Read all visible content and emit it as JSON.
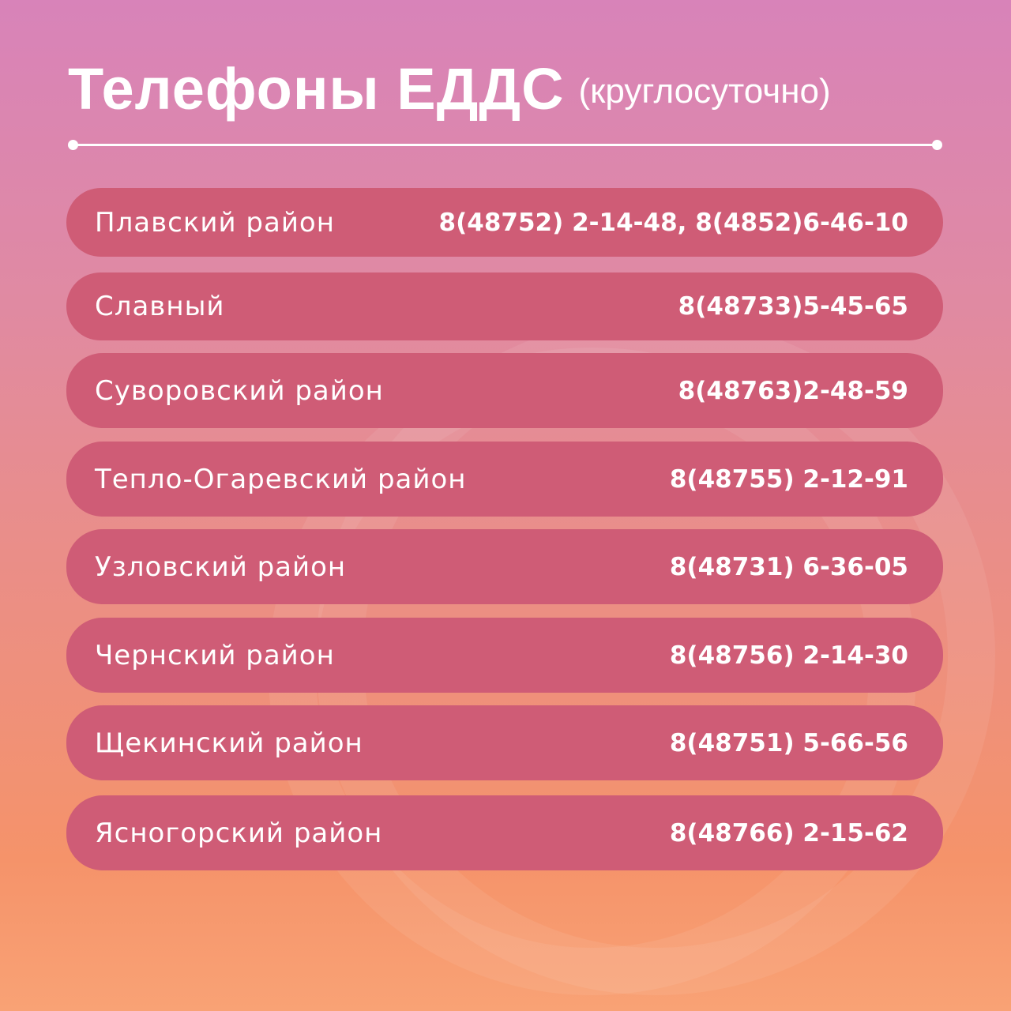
{
  "header": {
    "title": "Телефоны ЕДДС",
    "subtitle": "(круглосуточно)"
  },
  "colors": {
    "pill": "#cf5c76",
    "bg_top": "#d883b9",
    "bg_bottom": "#f9a275"
  },
  "rows": [
    {
      "name": "Плавский район",
      "phone": "8(48752) 2-14-48, 8(4852)6-46-10"
    },
    {
      "name": "Славный",
      "phone": "8(48733)5-45-65"
    },
    {
      "name": "Суворовский район",
      "phone": "8(48763)2-48-59"
    },
    {
      "name": "Тепло-Огаревский район",
      "phone": "8(48755) 2-12-91"
    },
    {
      "name": "Узловский район",
      "phone": "8(48731) 6-36-05"
    },
    {
      "name": "Чернский район",
      "phone": "8(48756) 2-14-30"
    },
    {
      "name": "Щекинский район",
      "phone": "8(48751) 5-66-56"
    },
    {
      "name": "Ясногорский район",
      "phone": "8(48766) 2-15-62"
    }
  ]
}
